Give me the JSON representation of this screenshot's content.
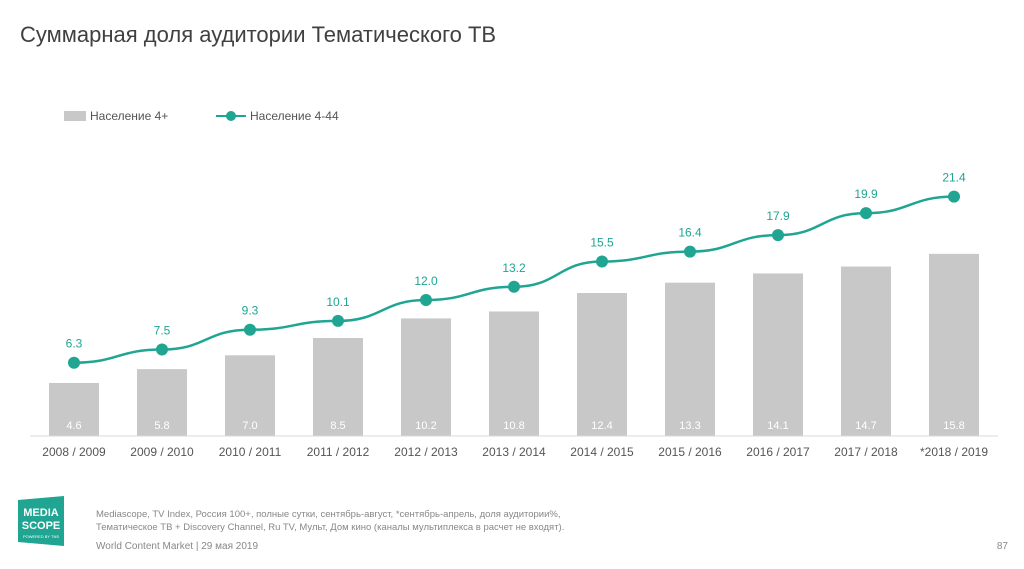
{
  "title": "Суммарная доля аудитории Тематического ТВ",
  "legend": {
    "bar_label": "Население 4+",
    "line_label": "Население 4-44"
  },
  "colors": {
    "bar": "#c8c8c8",
    "line": "#1fa591",
    "bar_text": "#ffffff"
  },
  "chart_data": {
    "type": "bar",
    "title": "Суммарная доля аудитории Тематического ТВ",
    "categories": [
      "2008 / 2009",
      "2009 / 2010",
      "2010 / 2011",
      "2011 / 2012",
      "2012 / 2013",
      "2013 / 2014",
      "2014 / 2015",
      "2015 / 2016",
      "2016 / 2017",
      "2017 / 2018",
      "*2018 / 2019"
    ],
    "series": [
      {
        "name": "Население 4+",
        "kind": "bar",
        "values": [
          4.6,
          5.8,
          7.0,
          8.5,
          10.2,
          10.8,
          12.4,
          13.3,
          14.1,
          14.7,
          15.8
        ],
        "labels": [
          "4.6",
          "5.8",
          "7.0",
          "8.5",
          "10.2",
          "10.8",
          "12.4",
          "13.3",
          "14.1",
          "14.7",
          "15.8"
        ]
      },
      {
        "name": "Население 4-44",
        "kind": "line",
        "values": [
          6.3,
          7.5,
          9.3,
          10.1,
          12.0,
          13.2,
          15.5,
          16.4,
          17.9,
          19.9,
          21.4
        ],
        "labels": [
          "6.3",
          "7.5",
          "9.3",
          "10.1",
          "12.0",
          "13.2",
          "15.5",
          "16.4",
          "17.9",
          "19.9",
          "21.4"
        ]
      }
    ],
    "legend": "top-left",
    "grid": false
  },
  "logo": {
    "line1": "MEDIA",
    "line2": "SCOPE",
    "tagline": "POWERED BY TNS"
  },
  "notes": {
    "line1": "Mediascope, TV Index, Россия 100+, полные сутки, сентябрь-август, *сентябрь-апрель, доля аудитории%,",
    "line2": "Тематическое ТВ + Discovery Channel, Ru TV, Мульт, Дом кино (каналы мультиплекса в расчет не входят)."
  },
  "footer": "World Content Market | 29 мая 2019",
  "page_number": "87"
}
